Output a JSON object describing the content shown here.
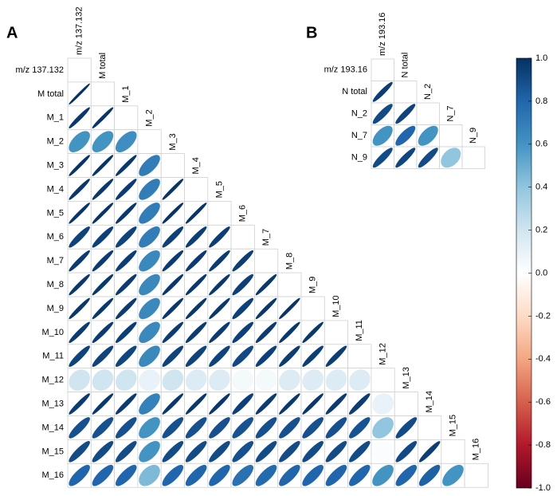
{
  "chart_data": [
    {
      "type": "correlation",
      "panel": "A",
      "variables": [
        "m/z 137.132",
        "M total",
        "M_1",
        "M_2",
        "M_3",
        "M_4",
        "M_5",
        "M_6",
        "M_7",
        "M_8",
        "M_9",
        "M_10",
        "M_11",
        "M_12",
        "M_13",
        "M_14",
        "M_15",
        "M_16"
      ],
      "matrix": [
        [
          1
        ],
        [
          0.99,
          1
        ],
        [
          0.97,
          0.98,
          1
        ],
        [
          0.6,
          0.6,
          0.62,
          1
        ],
        [
          0.98,
          0.98,
          0.97,
          0.7,
          1
        ],
        [
          0.97,
          0.97,
          0.96,
          0.7,
          0.98,
          1
        ],
        [
          0.98,
          0.98,
          0.97,
          0.7,
          0.98,
          0.98,
          1
        ],
        [
          0.93,
          0.94,
          0.93,
          0.7,
          0.94,
          0.95,
          0.95,
          1
        ],
        [
          0.96,
          0.96,
          0.95,
          0.65,
          0.96,
          0.96,
          0.96,
          0.95,
          1
        ],
        [
          0.97,
          0.97,
          0.96,
          0.65,
          0.97,
          0.97,
          0.97,
          0.94,
          0.97,
          1
        ],
        [
          0.97,
          0.97,
          0.96,
          0.65,
          0.97,
          0.97,
          0.97,
          0.94,
          0.97,
          0.98,
          1
        ],
        [
          0.96,
          0.96,
          0.95,
          0.65,
          0.96,
          0.96,
          0.96,
          0.94,
          0.96,
          0.97,
          0.97,
          1
        ],
        [
          0.93,
          0.93,
          0.92,
          0.65,
          0.93,
          0.93,
          0.93,
          0.91,
          0.94,
          0.95,
          0.95,
          0.95,
          1
        ],
        [
          0.2,
          0.2,
          0.2,
          0.1,
          0.2,
          0.15,
          0.15,
          0.05,
          0.05,
          0.15,
          0.15,
          0.15,
          0.15,
          1
        ],
        [
          0.96,
          0.97,
          0.96,
          0.68,
          0.97,
          0.97,
          0.97,
          0.94,
          0.96,
          0.97,
          0.97,
          0.96,
          0.95,
          0.1,
          1
        ],
        [
          0.88,
          0.88,
          0.88,
          0.6,
          0.88,
          0.88,
          0.88,
          0.87,
          0.88,
          0.88,
          0.88,
          0.88,
          0.87,
          0.4,
          0.9,
          1
        ],
        [
          0.9,
          0.9,
          0.9,
          0.6,
          0.9,
          0.9,
          0.9,
          0.88,
          0.9,
          0.9,
          0.9,
          0.9,
          0.9,
          0.02,
          0.91,
          0.95,
          1
        ],
        [
          0.8,
          0.8,
          0.8,
          0.45,
          0.8,
          0.8,
          0.8,
          0.75,
          0.78,
          0.8,
          0.8,
          0.8,
          0.8,
          0.6,
          0.8,
          0.82,
          0.6,
          1
        ]
      ]
    },
    {
      "type": "correlation",
      "panel": "B",
      "variables": [
        "m/z 193.16",
        "N total",
        "N_2",
        "N_7",
        "N_9"
      ],
      "matrix": [
        [
          1
        ],
        [
          0.95,
          1
        ],
        [
          0.9,
          0.93,
          1
        ],
        [
          0.6,
          0.8,
          0.6,
          1
        ],
        [
          0.9,
          0.92,
          0.9,
          0.4,
          1
        ]
      ]
    }
  ],
  "colorbar": {
    "lim": [
      -1,
      1
    ],
    "colors": [
      "#67001F",
      "#B2182B",
      "#D6604D",
      "#F4A582",
      "#FDDBC7",
      "#FFFFFF",
      "#D1E5F0",
      "#92C5DE",
      "#4393C3",
      "#2166AC",
      "#053061"
    ],
    "ticks": [
      {
        "value": 1,
        "label": "1.0"
      },
      {
        "value": 0.8,
        "label": "0.8"
      },
      {
        "value": 0.6,
        "label": "0.6"
      },
      {
        "value": 0.4,
        "label": "0.4"
      },
      {
        "value": 0.2,
        "label": "0.2"
      },
      {
        "value": 0,
        "label": "0.0"
      },
      {
        "value": -0.2,
        "label": "-0.2"
      },
      {
        "value": -0.4,
        "label": "-0.4"
      },
      {
        "value": -0.6,
        "label": "-0.6"
      },
      {
        "value": -0.8,
        "label": "-0.8"
      },
      {
        "value": -1,
        "label": "-1.0"
      }
    ]
  }
}
